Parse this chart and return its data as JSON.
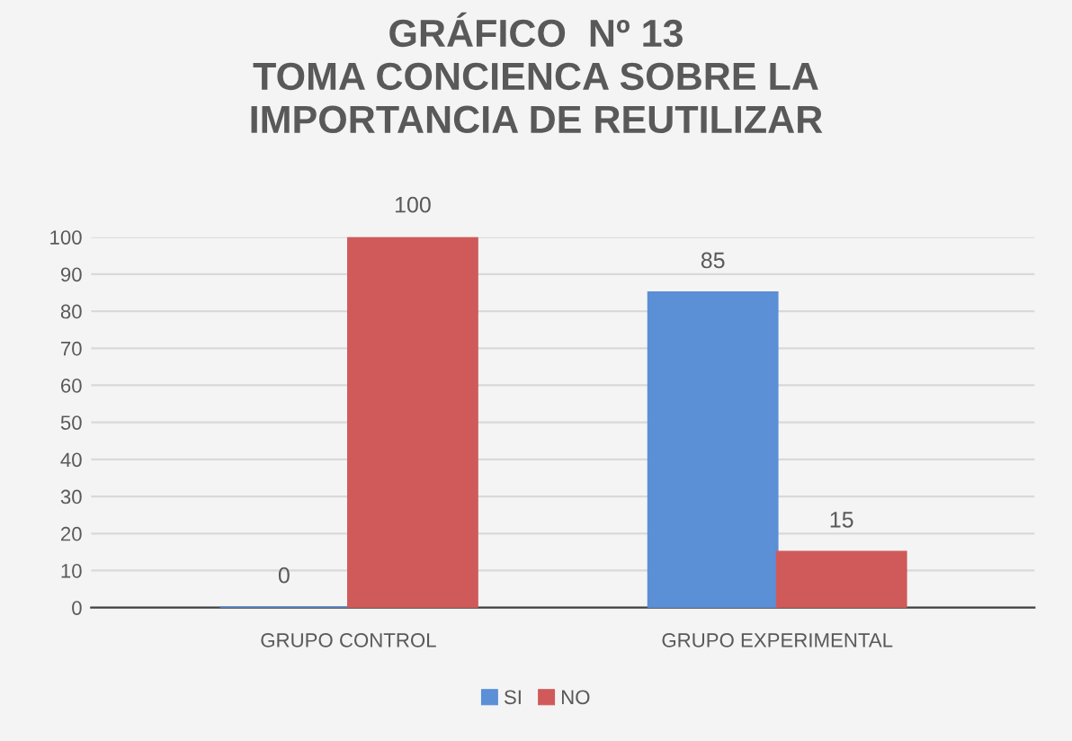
{
  "chart_data": {
    "type": "bar",
    "title": "GRÁFICO  Nº 13\nTOMA CONCIENCA SOBRE LA\nIMPORTANCIA DE REUTILIZAR",
    "categories": [
      "GRUPO CONTROL",
      "GRUPO EXPERIMENTAL"
    ],
    "series": [
      {
        "name": "SI",
        "color": "#5b8fd6",
        "values": [
          0,
          85
        ]
      },
      {
        "name": "NO",
        "color": "#d05a5a",
        "values": [
          100,
          15
        ]
      }
    ],
    "ylim": [
      0,
      100
    ],
    "yticks": [
      0,
      10,
      20,
      30,
      40,
      50,
      60,
      70,
      80,
      90,
      100
    ],
    "grid": "y",
    "legend": "bottom",
    "data_labels": true
  }
}
